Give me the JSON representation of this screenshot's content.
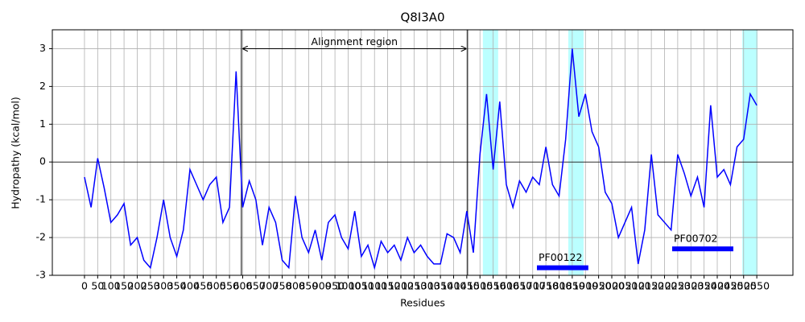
{
  "chart_data": {
    "type": "line",
    "title": "Q8I3A0",
    "x_label": "Residues",
    "y_label": "Hydropathy (kcal/mol)",
    "x": [
      0,
      25,
      50,
      75,
      100,
      125,
      150,
      175,
      200,
      225,
      250,
      275,
      300,
      325,
      350,
      375,
      400,
      425,
      450,
      475,
      500,
      525,
      550,
      575,
      600,
      625,
      650,
      675,
      700,
      725,
      750,
      775,
      800,
      825,
      850,
      875,
      900,
      925,
      950,
      975,
      1000,
      1025,
      1050,
      1075,
      1100,
      1125,
      1150,
      1175,
      1200,
      1225,
      1250,
      1275,
      1300,
      1325,
      1350,
      1375,
      1400,
      1425,
      1450,
      1475,
      1500,
      1525,
      1550,
      1575,
      1600,
      1625,
      1650,
      1675,
      1700,
      1725,
      1750,
      1775,
      1800,
      1825,
      1850,
      1875,
      1900,
      1925,
      1950,
      1975,
      2000,
      2025,
      2050,
      2075,
      2100,
      2125,
      2150,
      2175,
      2200,
      2225,
      2250,
      2275,
      2300,
      2325,
      2350,
      2375,
      2400,
      2425,
      2450,
      2475,
      2500,
      2525,
      2550
    ],
    "series": [
      {
        "color": "#0000ff",
        "values": [
          -0.4,
          -1.2,
          0.1,
          -0.7,
          -1.6,
          -1.4,
          -1.1,
          -2.2,
          -2.0,
          -2.6,
          -2.8,
          -2.0,
          -1.0,
          -2.0,
          -2.5,
          -1.8,
          -0.2,
          -0.6,
          -1.0,
          -0.6,
          -0.4,
          -1.6,
          -1.2,
          2.4,
          -1.2,
          -0.5,
          -1.0,
          -2.2,
          -1.2,
          -1.6,
          -2.6,
          -2.8,
          -0.9,
          -2.0,
          -2.4,
          -1.8,
          -2.6,
          -1.6,
          -1.4,
          -2.0,
          -2.3,
          -1.3,
          -2.5,
          -2.2,
          -2.8,
          -2.1,
          -2.4,
          -2.2,
          -2.6,
          -2.0,
          -2.4,
          -2.2,
          -2.5,
          -2.7,
          -2.7,
          -1.9,
          -2.0,
          -2.4,
          -1.3,
          -2.4,
          0.2,
          1.8,
          -0.2,
          1.6,
          -0.6,
          -1.2,
          -0.5,
          -0.8,
          -0.4,
          -0.6,
          0.4,
          -0.6,
          -0.9,
          0.6,
          3.0,
          1.2,
          1.8,
          0.8,
          0.4,
          -0.8,
          -1.1,
          -2.0,
          -1.6,
          -1.2,
          -2.7,
          -1.8,
          0.2,
          -1.4,
          -1.6,
          -1.8,
          0.2,
          -0.3,
          -0.9,
          -0.4,
          -1.2,
          1.5,
          -0.4,
          -0.2,
          -0.6,
          0.4,
          0.6,
          1.8,
          1.5
        ]
      }
    ],
    "xlim": [
      -122,
      2687
    ],
    "ylim": [
      -3,
      3.5
    ],
    "xticks": [
      0,
      50,
      100,
      150,
      200,
      250,
      300,
      350,
      400,
      450,
      500,
      550,
      600,
      650,
      700,
      750,
      800,
      850,
      900,
      950,
      1000,
      1050,
      1100,
      1150,
      1200,
      1250,
      1300,
      1350,
      1400,
      1450,
      1500,
      1550,
      1600,
      1650,
      1700,
      1750,
      1800,
      1850,
      1900,
      1950,
      2000,
      2050,
      2100,
      2150,
      2200,
      2250,
      2300,
      2350,
      2400,
      2450,
      2500,
      2550
    ],
    "yticks": [
      -3,
      -2,
      -1,
      0,
      1,
      2,
      3
    ],
    "grid": true,
    "hline": 0,
    "alignment_region": {
      "label": "Alignment region",
      "start": 595,
      "end": 1453,
      "y": 3
    },
    "highlight_color": "#aaffff",
    "highlight_regions": [
      [
        1511,
        1569
      ],
      [
        1835,
        1893
      ],
      [
        2495,
        2553
      ]
    ],
    "domain_color": "#0000ff",
    "domains": [
      {
        "name": "PF00122",
        "start": 1716,
        "end": 1911,
        "y": -2.8
      },
      {
        "name": "PF00702",
        "start": 2229,
        "end": 2461,
        "y": -2.3
      }
    ]
  }
}
